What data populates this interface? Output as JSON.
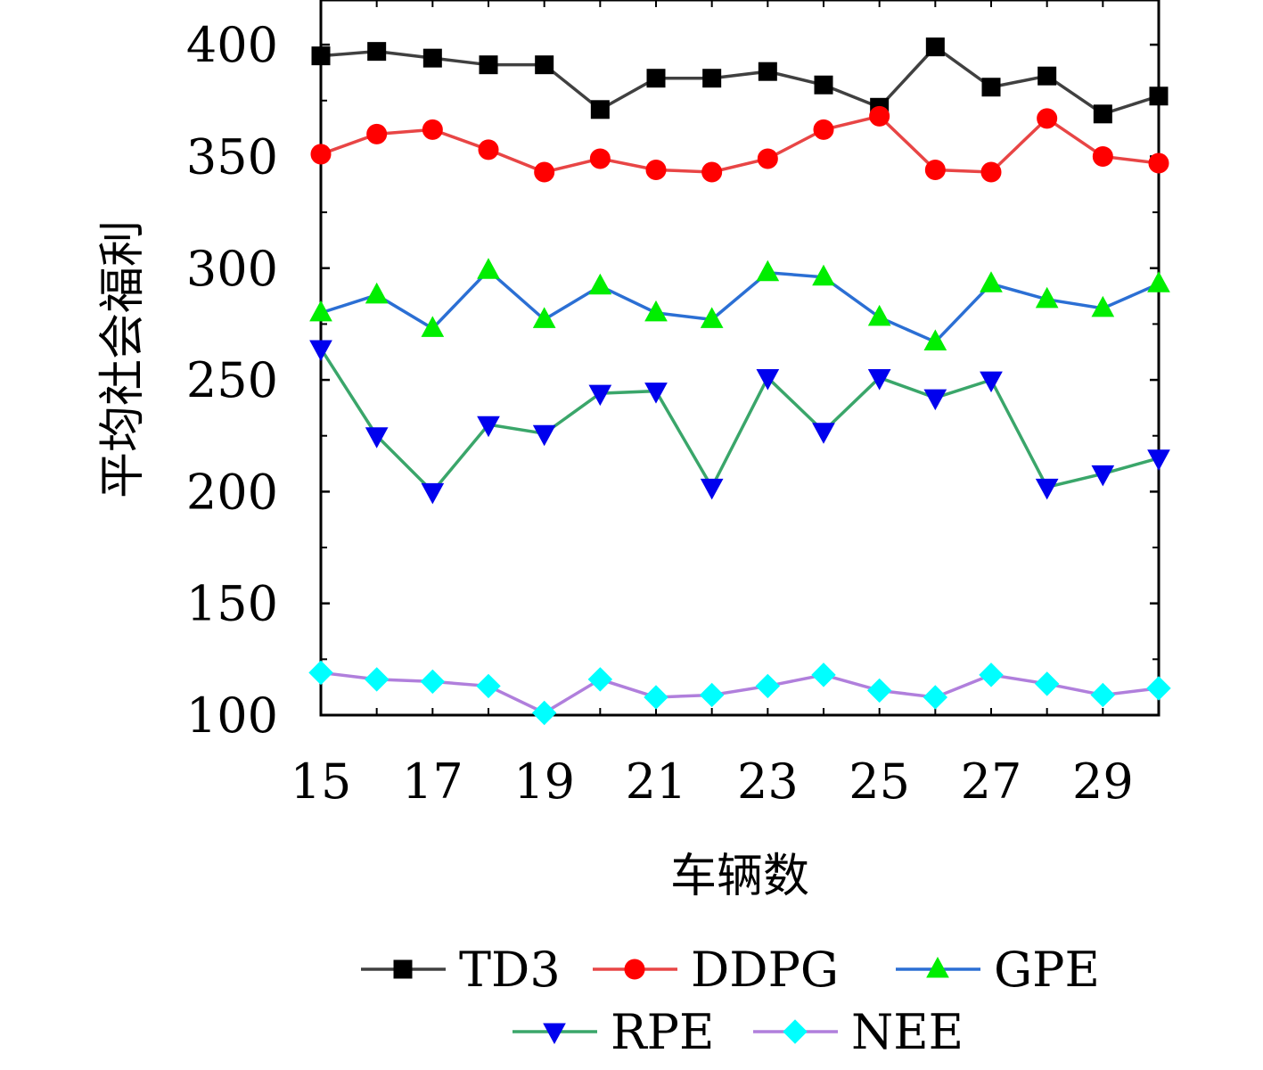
{
  "chart_data": {
    "type": "line",
    "xlabel": "车辆数",
    "ylabel": "平均社会福利",
    "xlim": [
      15,
      30
    ],
    "ylim": [
      100,
      420
    ],
    "x": [
      15,
      16,
      17,
      18,
      19,
      20,
      21,
      22,
      23,
      24,
      25,
      26,
      27,
      28,
      29,
      30
    ],
    "xticks": [
      15,
      17,
      19,
      21,
      23,
      25,
      27,
      29
    ],
    "yticks": [
      100,
      150,
      200,
      250,
      300,
      350,
      400
    ],
    "grid": false,
    "legend_position": "bottom",
    "series": [
      {
        "name": "TD3",
        "line_color": "#404040",
        "marker_color": "#000000",
        "marker": "square",
        "values": [
          395,
          397,
          394,
          391,
          391,
          371,
          385,
          385,
          388,
          382,
          372,
          399,
          381,
          386,
          369,
          377
        ]
      },
      {
        "name": "DDPG",
        "line_color": "#e84545",
        "marker_color": "#ff0000",
        "marker": "circle",
        "values": [
          351,
          360,
          362,
          353,
          343,
          349,
          344,
          343,
          349,
          362,
          368,
          344,
          343,
          367,
          350,
          347
        ]
      },
      {
        "name": "GPE",
        "line_color": "#2b6fd4",
        "marker_color": "#00ee00",
        "marker": "triangle-up",
        "values": [
          280,
          288,
          273,
          299,
          277,
          292,
          280,
          277,
          298,
          296,
          278,
          267,
          293,
          286,
          282,
          293
        ]
      },
      {
        "name": "RPE",
        "line_color": "#3aa66a",
        "marker_color": "#0000ee",
        "marker": "triangle-down",
        "values": [
          264,
          225,
          200,
          230,
          226,
          244,
          245,
          202,
          251,
          227,
          251,
          242,
          250,
          202,
          208,
          215
        ]
      },
      {
        "name": "NEE",
        "line_color": "#b07fdc",
        "marker_color": "#00ffff",
        "marker": "diamond",
        "values": [
          119,
          116,
          115,
          113,
          101,
          116,
          108,
          109,
          113,
          118,
          111,
          108,
          118,
          114,
          109,
          112
        ]
      }
    ]
  }
}
